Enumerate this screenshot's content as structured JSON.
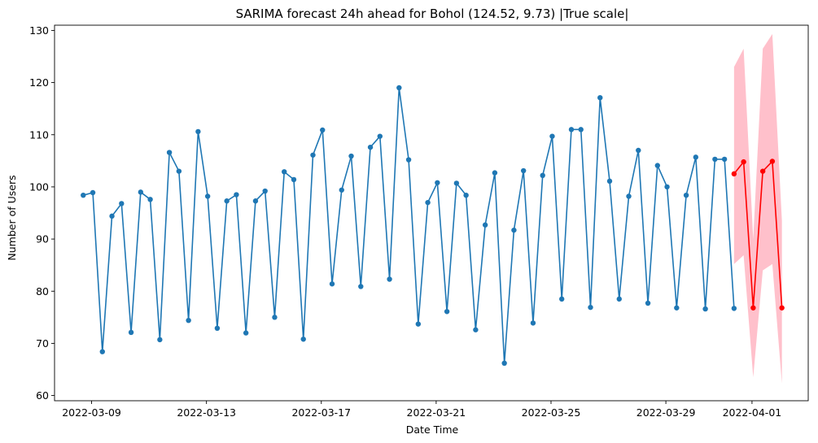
{
  "chart_data": {
    "type": "line",
    "title": "SARIMA forecast 24h ahead for Bohol (124.52, 9.73) |True scale|",
    "xlabel": "Date Time",
    "ylabel": "Number of Users",
    "xlim": [
      "2022-03-07T17:00",
      "2022-04-02T23:00"
    ],
    "ylim": [
      59,
      131
    ],
    "x_ticks": [
      "2022-03-09",
      "2022-03-13",
      "2022-03-17",
      "2022-03-21",
      "2022-03-25",
      "2022-03-29",
      "2022-04-01"
    ],
    "y_ticks": [
      60,
      70,
      80,
      90,
      100,
      110,
      120,
      130
    ],
    "grid": false,
    "series": [
      {
        "color": "#1f77b4",
        "x": [
          "2022-03-08T17:00",
          "2022-03-09T01:00",
          "2022-03-09T09:00",
          "2022-03-09T17:00",
          "2022-03-10T01:00",
          "2022-03-10T09:00",
          "2022-03-10T17:00",
          "2022-03-11T01:00",
          "2022-03-11T09:00",
          "2022-03-11T17:00",
          "2022-03-12T01:00",
          "2022-03-12T09:00",
          "2022-03-12T17:00",
          "2022-03-13T01:00",
          "2022-03-13T09:00",
          "2022-03-13T17:00",
          "2022-03-14T01:00",
          "2022-03-14T09:00",
          "2022-03-14T17:00",
          "2022-03-15T01:00",
          "2022-03-15T09:00",
          "2022-03-15T17:00",
          "2022-03-16T01:00",
          "2022-03-16T09:00",
          "2022-03-16T17:00",
          "2022-03-17T01:00",
          "2022-03-17T09:00",
          "2022-03-17T17:00",
          "2022-03-18T01:00",
          "2022-03-18T09:00",
          "2022-03-18T17:00",
          "2022-03-19T01:00",
          "2022-03-19T09:00",
          "2022-03-19T17:00",
          "2022-03-20T01:00",
          "2022-03-20T09:00",
          "2022-03-20T17:00",
          "2022-03-21T01:00",
          "2022-03-21T09:00",
          "2022-03-21T17:00",
          "2022-03-22T01:00",
          "2022-03-22T09:00",
          "2022-03-22T17:00",
          "2022-03-23T01:00",
          "2022-03-23T09:00",
          "2022-03-23T17:00",
          "2022-03-24T01:00",
          "2022-03-24T09:00",
          "2022-03-24T17:00",
          "2022-03-25T01:00",
          "2022-03-25T09:00",
          "2022-03-25T17:00",
          "2022-03-26T01:00",
          "2022-03-26T09:00",
          "2022-03-26T17:00",
          "2022-03-27T01:00",
          "2022-03-27T09:00",
          "2022-03-27T17:00",
          "2022-03-28T01:00",
          "2022-03-28T09:00",
          "2022-03-28T17:00",
          "2022-03-29T01:00",
          "2022-03-29T09:00",
          "2022-03-29T17:00",
          "2022-03-30T01:00",
          "2022-03-30T09:00",
          "2022-03-30T17:00",
          "2022-03-31T01:00",
          "2022-03-31T09:00"
        ],
        "values": [
          98.4,
          98.9,
          68.4,
          94.4,
          96.8,
          72.1,
          99.0,
          97.6,
          70.7,
          106.6,
          103.0,
          74.4,
          110.6,
          98.2,
          72.9,
          97.3,
          98.5,
          72.0,
          97.3,
          99.2,
          75.0,
          102.9,
          101.4,
          70.8,
          106.1,
          110.9,
          81.4,
          99.4,
          105.9,
          80.9,
          107.6,
          109.7,
          82.3,
          119.0,
          105.2,
          73.7,
          97.0,
          100.8,
          76.1,
          100.7,
          98.4,
          72.6,
          92.7,
          102.7,
          66.2,
          91.7,
          103.1,
          73.9,
          102.2,
          109.7,
          78.5,
          111.0,
          111.0,
          76.9,
          117.1,
          101.1,
          78.5,
          98.2,
          107.0,
          77.7,
          104.1,
          100.0,
          76.8,
          98.4,
          105.7,
          76.6,
          105.3,
          105.3,
          76.7
        ]
      },
      {
        "color": "#ff0000",
        "x": [
          "2022-03-31T09:00",
          "2022-03-31T17:00",
          "2022-04-01T01:00",
          "2022-04-01T09:00",
          "2022-04-01T17:00",
          "2022-04-02T01:00"
        ],
        "values": [
          102.5,
          104.8,
          76.8,
          103.0,
          104.9,
          76.8
        ],
        "lower": [
          85.2,
          86.9,
          63.5,
          84.0,
          85.2,
          62.3
        ],
        "upper": [
          123.0,
          126.5,
          90.0,
          126.5,
          129.3,
          93.5
        ],
        "band_color": "#ffc0cb"
      }
    ]
  }
}
